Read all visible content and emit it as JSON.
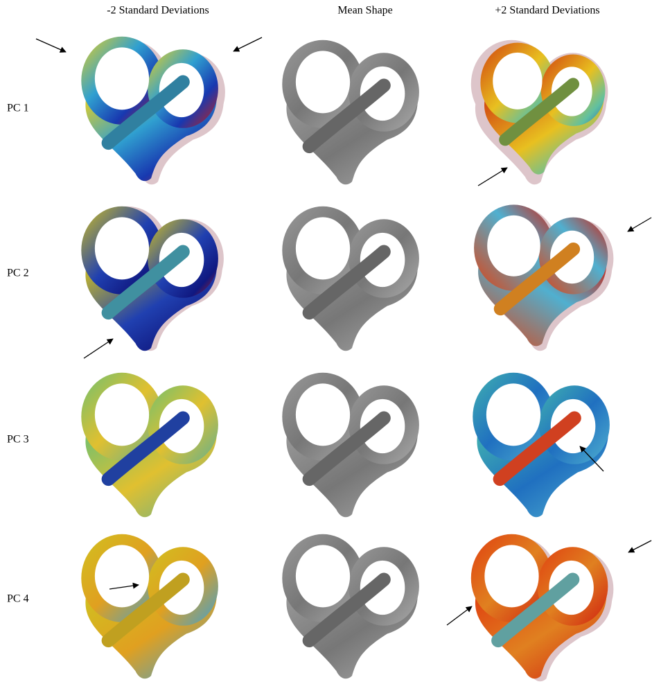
{
  "columns": [
    "-2 Standard Deviations",
    "Mean Shape",
    "+2 Standard Deviations"
  ],
  "rows": [
    "PC 1",
    "PC 2",
    "PC 3",
    "PC 4"
  ]
}
